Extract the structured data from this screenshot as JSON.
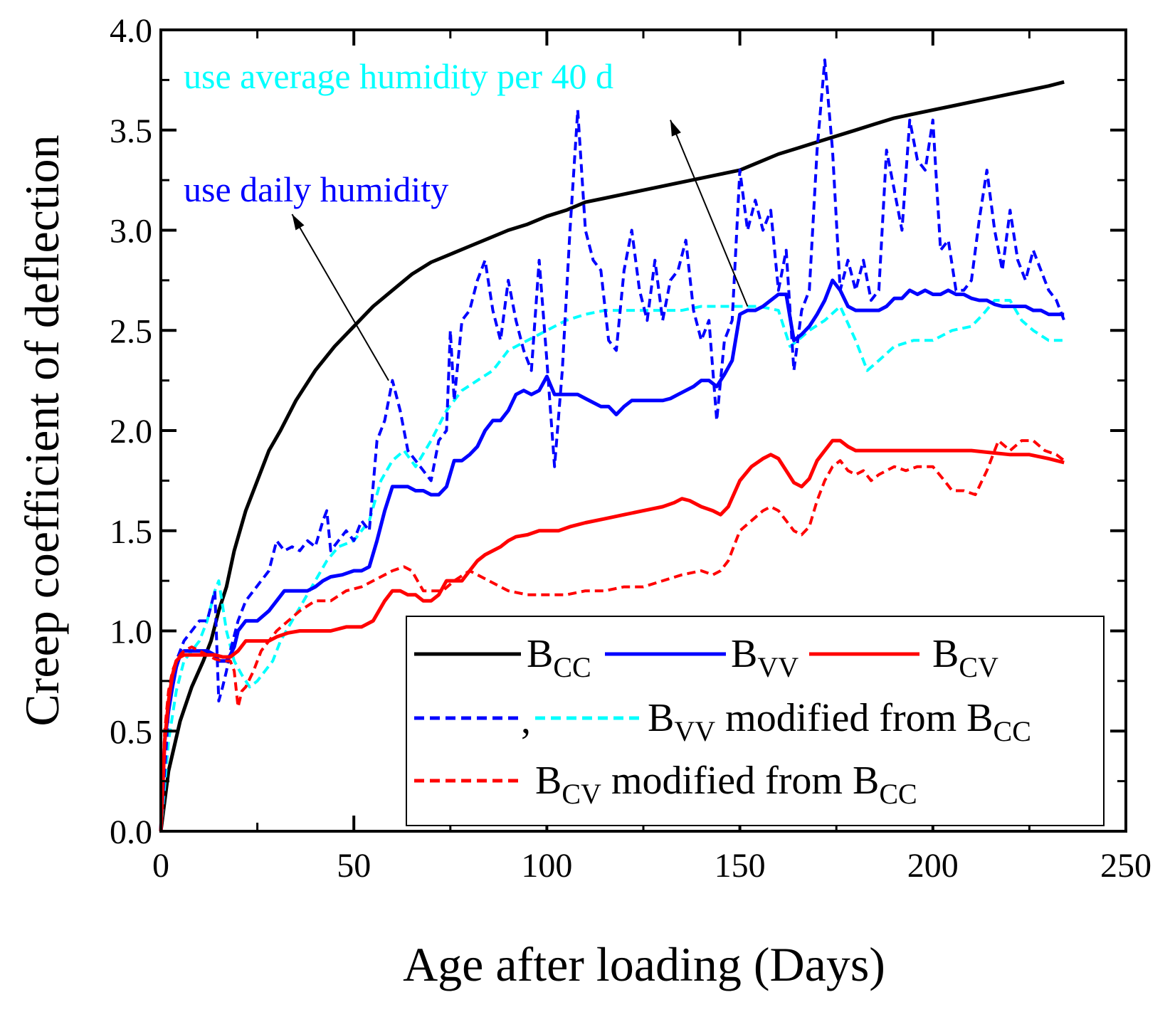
{
  "chart_data": {
    "type": "line",
    "title": "",
    "xlabel": "Age after loading (Days)",
    "ylabel": "Creep coefficient of deflection",
    "xlim": [
      0,
      250
    ],
    "ylim": [
      0,
      4.0
    ],
    "x_ticks": [
      0,
      50,
      100,
      150,
      200,
      250
    ],
    "x_tick_labels": [
      "0",
      "50",
      "100",
      "150",
      "200",
      "250"
    ],
    "y_ticks": [
      0,
      0.5,
      1.0,
      1.5,
      2.0,
      2.5,
      3.0,
      3.5,
      4.0
    ],
    "y_tick_labels": [
      "0.0",
      "0.5",
      "1.0",
      "1.5",
      "2.0",
      "2.5",
      "3.0",
      "3.5",
      "4.0"
    ],
    "grid": false,
    "legend_position": "bottom-right",
    "series": [
      {
        "key": "bcc",
        "name": "B_CC",
        "legend_main": "B",
        "legend_sub": "CC",
        "color": "#000000",
        "style": "solid",
        "x": [
          0,
          2,
          5,
          8,
          11,
          13,
          15,
          17,
          19,
          22,
          25,
          28,
          31,
          35,
          40,
          45,
          50,
          55,
          60,
          65,
          70,
          75,
          80,
          85,
          90,
          95,
          100,
          105,
          110,
          115,
          120,
          125,
          130,
          135,
          140,
          145,
          150,
          155,
          160,
          165,
          170,
          175,
          180,
          185,
          190,
          195,
          200,
          205,
          210,
          215,
          220,
          225,
          230,
          234
        ],
        "y": [
          0,
          0.3,
          0.55,
          0.72,
          0.85,
          0.95,
          1.1,
          1.22,
          1.4,
          1.6,
          1.75,
          1.9,
          2.0,
          2.15,
          2.3,
          2.42,
          2.52,
          2.62,
          2.7,
          2.78,
          2.84,
          2.88,
          2.92,
          2.96,
          3.0,
          3.03,
          3.07,
          3.1,
          3.14,
          3.16,
          3.18,
          3.2,
          3.22,
          3.24,
          3.26,
          3.28,
          3.3,
          3.34,
          3.38,
          3.41,
          3.44,
          3.47,
          3.5,
          3.53,
          3.56,
          3.58,
          3.6,
          3.62,
          3.64,
          3.66,
          3.68,
          3.7,
          3.72,
          3.74
        ]
      },
      {
        "key": "bvv",
        "name": "B_VV",
        "legend_main": "B",
        "legend_sub": "VV",
        "color": "#0000ff",
        "style": "solid",
        "x": [
          0,
          1,
          2,
          3,
          4,
          5,
          6,
          7,
          8,
          10,
          12,
          14,
          15,
          16,
          17,
          18,
          19,
          20,
          22,
          25,
          28,
          30,
          32,
          35,
          38,
          40,
          42,
          44,
          47,
          50,
          52,
          54,
          56,
          58,
          60,
          62,
          64,
          66,
          68,
          70,
          72,
          74,
          76,
          78,
          80,
          82,
          84,
          86,
          88,
          90,
          92,
          94,
          96,
          98,
          100,
          102,
          105,
          108,
          110,
          112,
          114,
          116,
          118,
          120,
          122,
          124,
          126,
          128,
          130,
          132,
          134,
          136,
          138,
          140,
          142,
          144,
          146,
          148,
          150,
          152,
          154,
          156,
          158,
          160,
          162,
          164,
          166,
          168,
          170,
          172,
          174,
          176,
          178,
          180,
          182,
          184,
          186,
          188,
          190,
          192,
          194,
          196,
          198,
          200,
          202,
          204,
          206,
          208,
          210,
          212,
          214,
          216,
          218,
          220,
          222,
          224,
          226,
          228,
          230,
          232,
          234
        ],
        "y": [
          0,
          0.45,
          0.6,
          0.72,
          0.82,
          0.88,
          0.9,
          0.9,
          0.9,
          0.9,
          0.9,
          0.88,
          0.85,
          0.85,
          0.85,
          0.88,
          0.92,
          1.0,
          1.05,
          1.05,
          1.1,
          1.15,
          1.2,
          1.2,
          1.2,
          1.22,
          1.25,
          1.27,
          1.28,
          1.3,
          1.3,
          1.32,
          1.45,
          1.6,
          1.72,
          1.72,
          1.72,
          1.7,
          1.7,
          1.68,
          1.68,
          1.72,
          1.85,
          1.85,
          1.88,
          1.92,
          2.0,
          2.05,
          2.05,
          2.1,
          2.18,
          2.2,
          2.18,
          2.2,
          2.27,
          2.18,
          2.18,
          2.18,
          2.16,
          2.14,
          2.12,
          2.12,
          2.08,
          2.12,
          2.15,
          2.15,
          2.15,
          2.15,
          2.15,
          2.16,
          2.18,
          2.2,
          2.22,
          2.25,
          2.25,
          2.22,
          2.28,
          2.35,
          2.58,
          2.6,
          2.6,
          2.62,
          2.65,
          2.68,
          2.68,
          2.45,
          2.48,
          2.52,
          2.58,
          2.65,
          2.75,
          2.7,
          2.62,
          2.6,
          2.6,
          2.6,
          2.6,
          2.62,
          2.66,
          2.66,
          2.7,
          2.68,
          2.7,
          2.68,
          2.68,
          2.7,
          2.68,
          2.68,
          2.66,
          2.65,
          2.65,
          2.63,
          2.62,
          2.62,
          2.62,
          2.62,
          2.6,
          2.6,
          2.58,
          2.58,
          2.58
        ]
      },
      {
        "key": "bcv",
        "name": "B_CV",
        "legend_main": "B",
        "legend_sub": "CV",
        "color": "#ff0000",
        "style": "solid",
        "x": [
          0,
          1,
          2,
          3,
          4,
          5,
          6,
          8,
          10,
          12,
          14,
          16,
          18,
          20,
          22,
          25,
          28,
          30,
          33,
          36,
          40,
          44,
          48,
          52,
          55,
          58,
          60,
          62,
          64,
          66,
          68,
          70,
          72,
          74,
          76,
          78,
          80,
          82,
          84,
          86,
          88,
          90,
          92,
          95,
          98,
          100,
          103,
          106,
          110,
          115,
          120,
          125,
          130,
          133,
          135,
          137,
          140,
          143,
          145,
          147,
          150,
          153,
          156,
          158,
          160,
          162,
          164,
          166,
          168,
          170,
          172,
          174,
          176,
          178,
          180,
          185,
          190,
          195,
          200,
          205,
          210,
          215,
          220,
          225,
          230,
          234
        ],
        "y": [
          0,
          0.45,
          0.65,
          0.78,
          0.85,
          0.87,
          0.88,
          0.88,
          0.88,
          0.88,
          0.88,
          0.87,
          0.87,
          0.9,
          0.95,
          0.95,
          0.95,
          0.97,
          0.99,
          1.0,
          1.0,
          1.0,
          1.02,
          1.02,
          1.05,
          1.15,
          1.2,
          1.2,
          1.18,
          1.18,
          1.15,
          1.15,
          1.18,
          1.25,
          1.25,
          1.25,
          1.3,
          1.35,
          1.38,
          1.4,
          1.42,
          1.45,
          1.47,
          1.48,
          1.5,
          1.5,
          1.5,
          1.52,
          1.54,
          1.56,
          1.58,
          1.6,
          1.62,
          1.64,
          1.66,
          1.65,
          1.62,
          1.6,
          1.58,
          1.62,
          1.75,
          1.82,
          1.86,
          1.88,
          1.86,
          1.8,
          1.74,
          1.72,
          1.76,
          1.85,
          1.9,
          1.95,
          1.95,
          1.92,
          1.9,
          1.9,
          1.9,
          1.9,
          1.9,
          1.9,
          1.9,
          1.89,
          1.88,
          1.88,
          1.86,
          1.84
        ]
      },
      {
        "key": "bvv_mod_daily",
        "name": "B_VV modified from B_CC (use daily humidity)",
        "color": "#0000ff",
        "style": "dashed",
        "x": [
          0,
          2,
          4,
          6,
          8,
          10,
          12,
          14,
          15,
          16,
          17,
          18,
          20,
          22,
          24,
          26,
          28,
          30,
          32,
          34,
          36,
          38,
          40,
          42,
          43,
          44,
          46,
          48,
          50,
          52,
          54,
          56,
          58,
          60,
          62,
          64,
          66,
          68,
          70,
          72,
          74,
          75,
          76,
          78,
          80,
          82,
          84,
          86,
          88,
          90,
          92,
          94,
          96,
          98,
          100,
          102,
          104,
          106,
          108,
          110,
          112,
          114,
          116,
          118,
          120,
          122,
          124,
          126,
          128,
          130,
          132,
          134,
          136,
          138,
          140,
          142,
          144,
          146,
          148,
          150,
          152,
          154,
          156,
          158,
          160,
          162,
          164,
          166,
          168,
          170,
          172,
          174,
          176,
          178,
          180,
          182,
          184,
          186,
          188,
          190,
          192,
          194,
          196,
          198,
          200,
          202,
          204,
          206,
          208,
          210,
          212,
          214,
          216,
          218,
          220,
          222,
          224,
          226,
          228,
          230,
          232,
          234
        ],
        "y": [
          0,
          0.6,
          0.85,
          0.95,
          1.0,
          1.05,
          1.05,
          1.2,
          0.65,
          0.72,
          0.8,
          0.9,
          1.05,
          1.15,
          1.2,
          1.25,
          1.3,
          1.45,
          1.4,
          1.42,
          1.4,
          1.45,
          1.42,
          1.55,
          1.6,
          1.4,
          1.45,
          1.5,
          1.45,
          1.55,
          1.5,
          1.95,
          2.05,
          2.25,
          2.1,
          1.9,
          1.85,
          1.8,
          1.75,
          1.95,
          2.0,
          2.5,
          2.15,
          2.55,
          2.6,
          2.75,
          2.85,
          2.6,
          2.45,
          2.75,
          2.55,
          2.4,
          2.3,
          2.85,
          2.35,
          1.82,
          2.3,
          3.0,
          3.6,
          3.0,
          2.85,
          2.8,
          2.45,
          2.4,
          2.8,
          3.0,
          2.7,
          2.55,
          2.85,
          2.55,
          2.75,
          2.8,
          2.95,
          2.6,
          2.45,
          2.55,
          2.05,
          2.45,
          2.55,
          3.3,
          3.0,
          3.15,
          3.0,
          3.1,
          2.7,
          2.9,
          2.3,
          2.6,
          2.7,
          3.4,
          3.85,
          3.4,
          2.7,
          2.85,
          2.7,
          2.85,
          2.65,
          2.7,
          3.4,
          3.2,
          3.0,
          3.55,
          3.35,
          3.3,
          3.55,
          2.9,
          2.95,
          2.7,
          2.7,
          2.75,
          3.05,
          3.3,
          3.0,
          2.8,
          3.1,
          2.85,
          2.75,
          2.9,
          2.8,
          2.7,
          2.65,
          2.55
        ]
      },
      {
        "key": "bvv_mod_avg",
        "name": "B_VV modified from B_CC (use average humidity per 40 d)",
        "color": "#00ffff",
        "style": "dashed",
        "x": [
          0,
          2,
          4,
          6,
          8,
          10,
          12,
          14,
          15,
          17,
          19,
          21,
          23,
          25,
          27,
          29,
          31,
          34,
          37,
          40,
          43,
          46,
          50,
          54,
          57,
          60,
          63,
          66,
          70,
          74,
          78,
          82,
          86,
          90,
          95,
          100,
          105,
          110,
          115,
          120,
          125,
          130,
          135,
          140,
          145,
          150,
          155,
          160,
          163,
          165,
          168,
          172,
          176,
          180,
          183,
          186,
          190,
          195,
          200,
          205,
          210,
          213,
          216,
          220,
          223,
          226,
          230,
          234
        ],
        "y": [
          0,
          0.45,
          0.7,
          0.85,
          0.9,
          0.95,
          1.05,
          1.2,
          1.25,
          1.0,
          0.85,
          0.78,
          0.72,
          0.75,
          0.8,
          0.85,
          0.95,
          1.05,
          1.15,
          1.25,
          1.35,
          1.42,
          1.45,
          1.55,
          1.75,
          1.85,
          1.9,
          1.82,
          1.95,
          2.1,
          2.2,
          2.25,
          2.3,
          2.4,
          2.45,
          2.5,
          2.55,
          2.58,
          2.6,
          2.6,
          2.6,
          2.6,
          2.6,
          2.62,
          2.62,
          2.62,
          2.62,
          2.6,
          2.42,
          2.45,
          2.5,
          2.55,
          2.62,
          2.45,
          2.3,
          2.35,
          2.42,
          2.45,
          2.45,
          2.5,
          2.52,
          2.58,
          2.65,
          2.65,
          2.55,
          2.5,
          2.45,
          2.45
        ]
      },
      {
        "key": "bcv_mod",
        "name": "B_CV modified from B_CC",
        "legend_main": "B",
        "legend_sub": "CV",
        "legend_text": " modified from B",
        "legend_sub2": "CC",
        "color": "#ff0000",
        "style": "dashed",
        "x": [
          0,
          1,
          2,
          3,
          4,
          5,
          6,
          8,
          10,
          12,
          14,
          16,
          18,
          19,
          20,
          21,
          22,
          24,
          26,
          28,
          30,
          33,
          36,
          40,
          44,
          48,
          52,
          55,
          58,
          60,
          63,
          65,
          68,
          70,
          73,
          76,
          80,
          85,
          90,
          95,
          100,
          105,
          110,
          115,
          120,
          125,
          130,
          135,
          140,
          143,
          145,
          147,
          150,
          153,
          156,
          158,
          160,
          162,
          164,
          166,
          168,
          170,
          172,
          174,
          176,
          178,
          180,
          182,
          184,
          186,
          188,
          190,
          193,
          196,
          200,
          203,
          205,
          208,
          211,
          214,
          217,
          220,
          223,
          226,
          229,
          232,
          234
        ],
        "y": [
          0,
          0.5,
          0.7,
          0.8,
          0.85,
          0.88,
          0.9,
          0.92,
          0.9,
          0.88,
          0.86,
          0.85,
          0.85,
          0.8,
          0.62,
          0.7,
          0.72,
          0.8,
          0.9,
          0.95,
          1.0,
          1.05,
          1.1,
          1.15,
          1.15,
          1.2,
          1.22,
          1.25,
          1.28,
          1.3,
          1.32,
          1.3,
          1.2,
          1.2,
          1.2,
          1.25,
          1.3,
          1.25,
          1.2,
          1.18,
          1.18,
          1.18,
          1.2,
          1.2,
          1.22,
          1.22,
          1.25,
          1.28,
          1.3,
          1.28,
          1.3,
          1.35,
          1.5,
          1.55,
          1.6,
          1.62,
          1.6,
          1.55,
          1.5,
          1.48,
          1.52,
          1.65,
          1.75,
          1.82,
          1.85,
          1.8,
          1.78,
          1.8,
          1.75,
          1.78,
          1.8,
          1.82,
          1.8,
          1.82,
          1.82,
          1.75,
          1.7,
          1.7,
          1.68,
          1.8,
          1.95,
          1.9,
          1.95,
          1.95,
          1.9,
          1.88,
          1.85
        ]
      }
    ],
    "legend": {
      "row1": [
        {
          "key": "bcc",
          "main": "B",
          "sub": "CC"
        },
        {
          "key": "bvv",
          "main": "B",
          "sub": "VV"
        },
        {
          "key": "bcv",
          "main": "B",
          "sub": "CV"
        }
      ],
      "row2": {
        "comma": ",",
        "main": "B",
        "sub": "VV",
        "text": " modified from B",
        "sub2": "CC"
      },
      "row3": {
        "main": "B",
        "sub": "CV",
        "text": " modified from B",
        "sub2": "CC"
      }
    },
    "annotations": [
      {
        "key": "avg",
        "text": "use average humidity per 40 d",
        "color": "#00ffff",
        "arrow_from": [
          152,
          2.62
        ],
        "arrow_to": [
          132,
          3.55
        ]
      },
      {
        "key": "daily",
        "text": "use daily humidity",
        "color": "#0000ff",
        "arrow_from": [
          59,
          2.25
        ],
        "arrow_to": [
          34,
          3.08
        ]
      }
    ]
  }
}
